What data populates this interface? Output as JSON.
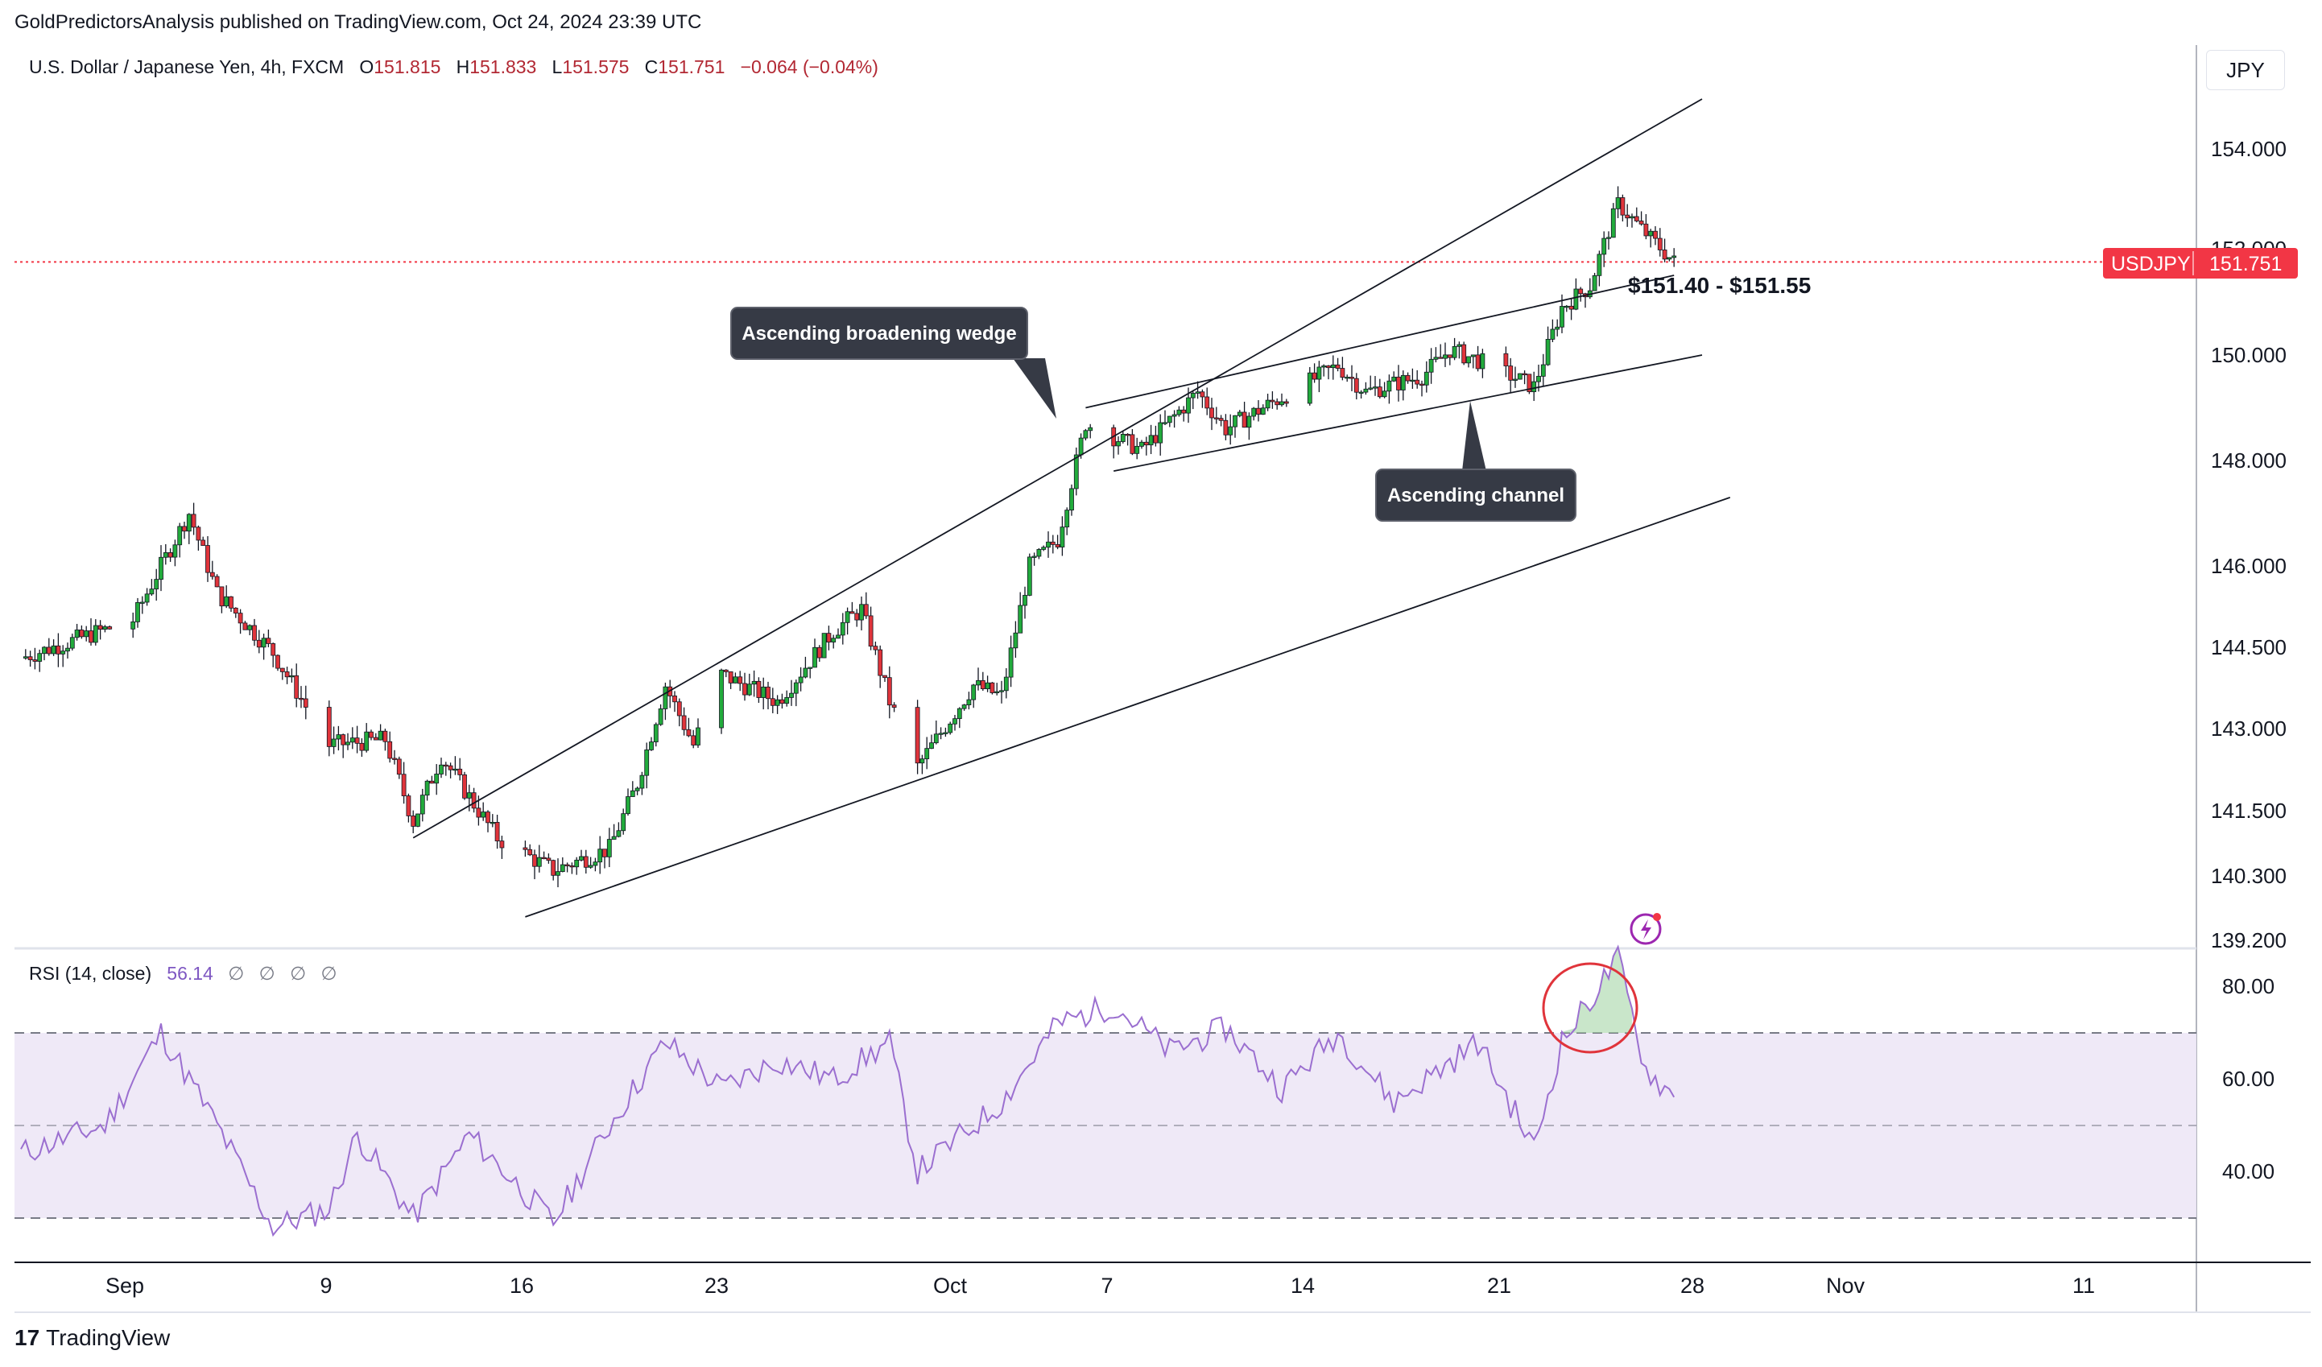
{
  "header": {
    "published_by": "GoldPredictorsAnalysis published on TradingView.com, Oct 24, 2024 23:39 UTC"
  },
  "symbol": {
    "name": "U.S. Dollar / Japanese Yen, 4h, FXCM",
    "open_label": "O",
    "open": "151.815",
    "high_label": "H",
    "high": "151.833",
    "low_label": "L",
    "low": "151.575",
    "close_label": "C",
    "close": "151.751",
    "change": "−0.064 (−0.04%)"
  },
  "price_scale": {
    "currency": "JPY",
    "ticks": [
      "154.000",
      "152.000",
      "150.000",
      "148.000",
      "146.000",
      "144.500",
      "143.000",
      "141.500",
      "140.300",
      "139.200"
    ],
    "current_label": "USDJPY",
    "current_value": "151.751"
  },
  "rsi_panel": {
    "label": "RSI (14, close)",
    "value": "56.14",
    "phi": [
      "∅",
      "∅",
      "∅",
      "∅"
    ],
    "ticks": [
      "80.00",
      "60.00",
      "40.00"
    ]
  },
  "time_axis": {
    "ticks": [
      "Sep",
      "9",
      "16",
      "23",
      "Oct",
      "7",
      "14",
      "21",
      "28",
      "Nov",
      "11"
    ]
  },
  "annotations": {
    "wedge": "Ascending broadening wedge",
    "channel": "Ascending channel",
    "zone": "$151.40 - $151.55"
  },
  "footer": {
    "brand": "TradingView",
    "logo_glyph": "17"
  },
  "colors": {
    "up": "#22ab3c",
    "down": "#e0343b",
    "rsi_line": "#9b6fd0",
    "rsi_band": "#ede7f6",
    "price_badge": "#f23645",
    "callout": "#363a45"
  },
  "chart_data": [
    {
      "type": "candlestick",
      "title": "U.S. Dollar / Japanese Yen, 4h, FXCM",
      "ylabel": "JPY",
      "ylim": [
        139.2,
        155.0
      ],
      "x_range": [
        "2024-08-28",
        "2024-11-12"
      ],
      "anchors": [
        {
          "date": "2024-08-28",
          "price": 144.3
        },
        {
          "date": "2024-09-01",
          "price": 145.0
        },
        {
          "date": "2024-09-03",
          "price": 147.0
        },
        {
          "date": "2024-09-04",
          "price": 145.5
        },
        {
          "date": "2024-09-06",
          "price": 144.4
        },
        {
          "date": "2024-09-08",
          "price": 142.7
        },
        {
          "date": "2024-09-10",
          "price": 142.8
        },
        {
          "date": "2024-09-11",
          "price": 141.3
        },
        {
          "date": "2024-09-12",
          "price": 142.5
        },
        {
          "date": "2024-09-14",
          "price": 141.0
        },
        {
          "date": "2024-09-16",
          "price": 140.4
        },
        {
          "date": "2024-09-18",
          "price": 140.8
        },
        {
          "date": "2024-09-19",
          "price": 142.0
        },
        {
          "date": "2024-09-20",
          "price": 143.8
        },
        {
          "date": "2024-09-21",
          "price": 142.7
        },
        {
          "date": "2024-09-22",
          "price": 144.0
        },
        {
          "date": "2024-09-24",
          "price": 143.5
        },
        {
          "date": "2024-09-26",
          "price": 144.8
        },
        {
          "date": "2024-09-27",
          "price": 145.2
        },
        {
          "date": "2024-09-28",
          "price": 143.5
        },
        {
          "date": "2024-09-29",
          "price": 142.3
        },
        {
          "date": "2024-10-01",
          "price": 143.8
        },
        {
          "date": "2024-10-02",
          "price": 143.6
        },
        {
          "date": "2024-10-03",
          "price": 146.0
        },
        {
          "date": "2024-10-04",
          "price": 146.5
        },
        {
          "date": "2024-10-05",
          "price": 148.7
        },
        {
          "date": "2024-10-07",
          "price": 148.2
        },
        {
          "date": "2024-10-09",
          "price": 149.3
        },
        {
          "date": "2024-10-10",
          "price": 148.6
        },
        {
          "date": "2024-10-12",
          "price": 149.2
        },
        {
          "date": "2024-10-14",
          "price": 149.8
        },
        {
          "date": "2024-10-15",
          "price": 149.3
        },
        {
          "date": "2024-10-17",
          "price": 149.6
        },
        {
          "date": "2024-10-18",
          "price": 150.1
        },
        {
          "date": "2024-10-19",
          "price": 149.9
        },
        {
          "date": "2024-10-21",
          "price": 149.4
        },
        {
          "date": "2024-10-22",
          "price": 150.9
        },
        {
          "date": "2024-10-23",
          "price": 151.3
        },
        {
          "date": "2024-10-24",
          "price": 152.9
        },
        {
          "date": "2024-10-25",
          "price": 152.3
        },
        {
          "date": "2024-10-26",
          "price": 151.75
        }
      ],
      "trendlines": [
        {
          "name": "wedge-upper",
          "from": {
            "date": "2024-09-11",
            "price": 141.0
          },
          "to": {
            "date": "2024-10-27",
            "price": 155.0
          }
        },
        {
          "name": "wedge-lower",
          "from": {
            "date": "2024-09-15",
            "price": 139.6
          },
          "to": {
            "date": "2024-10-28",
            "price": 147.3
          }
        },
        {
          "name": "channel-upper",
          "from": {
            "date": "2024-10-05",
            "price": 149.0
          },
          "to": {
            "date": "2024-10-26",
            "price": 151.5
          }
        },
        {
          "name": "channel-lower",
          "from": {
            "date": "2024-10-06",
            "price": 147.8
          },
          "to": {
            "date": "2024-10-27",
            "price": 150.0
          }
        }
      ],
      "current_price": 151.751
    },
    {
      "type": "line",
      "title": "RSI (14, close)",
      "ylim": [
        20,
        85
      ],
      "bands": [
        30,
        50,
        70
      ],
      "x_range": [
        "2024-08-28",
        "2024-11-12"
      ],
      "anchors": [
        {
          "date": "2024-08-28",
          "value": 44
        },
        {
          "date": "2024-08-31",
          "value": 50
        },
        {
          "date": "2024-09-02",
          "value": 70
        },
        {
          "date": "2024-09-04",
          "value": 50
        },
        {
          "date": "2024-09-06",
          "value": 28
        },
        {
          "date": "2024-09-08",
          "value": 32
        },
        {
          "date": "2024-09-09",
          "value": 48
        },
        {
          "date": "2024-09-11",
          "value": 30
        },
        {
          "date": "2024-09-13",
          "value": 48
        },
        {
          "date": "2024-09-16",
          "value": 29
        },
        {
          "date": "2024-09-18",
          "value": 50
        },
        {
          "date": "2024-09-20",
          "value": 68
        },
        {
          "date": "2024-09-22",
          "value": 58
        },
        {
          "date": "2024-09-24",
          "value": 64
        },
        {
          "date": "2024-09-26",
          "value": 60
        },
        {
          "date": "2024-09-28",
          "value": 68
        },
        {
          "date": "2024-09-29",
          "value": 40
        },
        {
          "date": "2024-10-02",
          "value": 55
        },
        {
          "date": "2024-10-04",
          "value": 72
        },
        {
          "date": "2024-10-06",
          "value": 76
        },
        {
          "date": "2024-10-08",
          "value": 66
        },
        {
          "date": "2024-10-10",
          "value": 71
        },
        {
          "date": "2024-10-12",
          "value": 58
        },
        {
          "date": "2024-10-14",
          "value": 70
        },
        {
          "date": "2024-10-16",
          "value": 55
        },
        {
          "date": "2024-10-19",
          "value": 68
        },
        {
          "date": "2024-10-21",
          "value": 45
        },
        {
          "date": "2024-10-22",
          "value": 68
        },
        {
          "date": "2024-10-24",
          "value": 86
        },
        {
          "date": "2024-10-25",
          "value": 62
        },
        {
          "date": "2024-10-26",
          "value": 56.14
        }
      ]
    }
  ]
}
